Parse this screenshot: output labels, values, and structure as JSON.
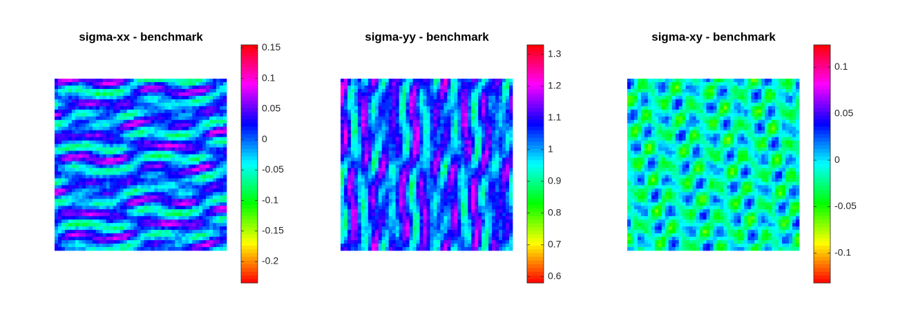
{
  "chart_data": [
    {
      "type": "heatmap",
      "title": "sigma-xx - benchmark",
      "colormap": "hsv",
      "grid": false,
      "axes_visible": false,
      "colorbar": {
        "range": [
          -0.235,
          0.155
        ],
        "ticks": [
          0.15,
          0.1,
          0.05,
          0,
          -0.05,
          -0.1,
          -0.15,
          -0.2
        ],
        "tick_labels": [
          "0.15",
          "0.1",
          "0.05",
          "0",
          "-0.05",
          "-0.1",
          "-0.15",
          "-0.2"
        ]
      },
      "matrix_size": [
        50,
        50
      ],
      "pattern": "horizontally elongated streaks, mostly cyan/blue/magenta"
    },
    {
      "type": "heatmap",
      "title": "sigma-yy - benchmark",
      "colormap": "hsv",
      "grid": false,
      "axes_visible": false,
      "colorbar": {
        "range": [
          0.58,
          1.33
        ],
        "ticks": [
          1.3,
          1.2,
          1.1,
          1,
          0.9,
          0.8,
          0.7,
          0.6
        ],
        "tick_labels": [
          "1.3",
          "1.2",
          "1.1",
          "1",
          "0.9",
          "0.8",
          "0.7",
          "0.6"
        ]
      },
      "matrix_size": [
        50,
        50
      ],
      "pattern": "vertically elongated streaks, mixed cyan/blue/magenta with green highlights"
    },
    {
      "type": "heatmap",
      "title": "sigma-xy - benchmark",
      "colormap": "hsv",
      "grid": false,
      "axes_visible": false,
      "colorbar": {
        "range": [
          -0.132,
          0.124
        ],
        "ticks": [
          0.1,
          0.05,
          0,
          -0.05,
          -0.1
        ],
        "tick_labels": [
          "0.1",
          "0.05",
          "0",
          "-0.05",
          "-0.1"
        ]
      },
      "matrix_size": [
        50,
        50
      ],
      "pattern": "diagonal blotches, mostly cyan/green with blue/magenta spots"
    }
  ]
}
